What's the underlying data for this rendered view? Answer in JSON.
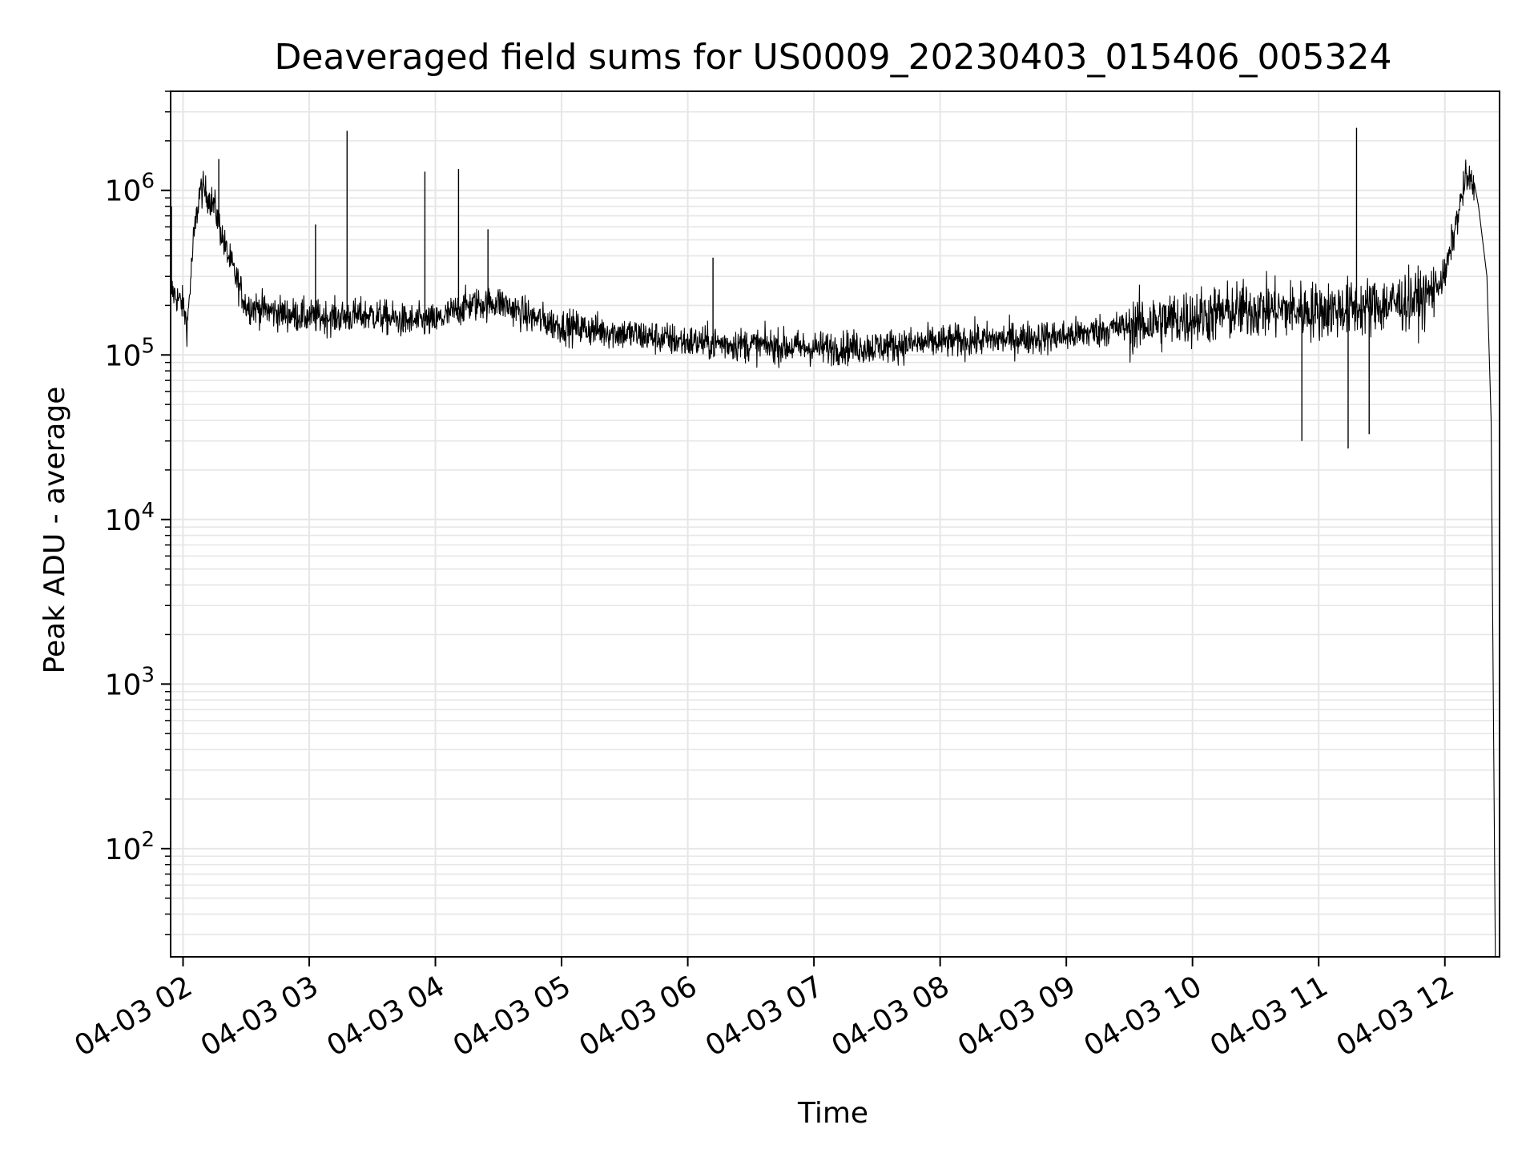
{
  "chart_data": {
    "type": "line",
    "title": "Deaveraged field sums for US0009_20230403_015406_005324",
    "xlabel": "Time",
    "ylabel": "Peak ADU - average",
    "yscale": "log",
    "ylim": [
      22,
      4000000
    ],
    "xlim": [
      "2023-04-03T01:54:06",
      "2023-04-03T12:26:00"
    ],
    "grid": true,
    "grid_color": "#e6e6e6",
    "line_color": "#000000",
    "x_ticks": [
      {
        "time": "2023-04-03T02:00:00",
        "label": "04-03 02"
      },
      {
        "time": "2023-04-03T03:00:00",
        "label": "04-03 03"
      },
      {
        "time": "2023-04-03T04:00:00",
        "label": "04-03 04"
      },
      {
        "time": "2023-04-03T05:00:00",
        "label": "04-03 05"
      },
      {
        "time": "2023-04-03T06:00:00",
        "label": "04-03 06"
      },
      {
        "time": "2023-04-03T07:00:00",
        "label": "04-03 07"
      },
      {
        "time": "2023-04-03T08:00:00",
        "label": "04-03 08"
      },
      {
        "time": "2023-04-03T09:00:00",
        "label": "04-03 09"
      },
      {
        "time": "2023-04-03T10:00:00",
        "label": "04-03 10"
      },
      {
        "time": "2023-04-03T11:00:00",
        "label": "04-03 11"
      },
      {
        "time": "2023-04-03T12:00:00",
        "label": "04-03 12"
      }
    ],
    "y_ticks": [
      {
        "value": 100,
        "base": "10",
        "exp": "2"
      },
      {
        "value": 1000,
        "base": "10",
        "exp": "3"
      },
      {
        "value": 10000,
        "base": "10",
        "exp": "4"
      },
      {
        "value": 100000,
        "base": "10",
        "exp": "5"
      },
      {
        "value": 1000000,
        "base": "10",
        "exp": "6"
      }
    ],
    "series": [
      {
        "style": "noisy-trace",
        "x": [
          "2023-04-03T01:54:06",
          "2023-04-03T02:00:00",
          "2023-04-03T02:02:00",
          "2023-04-03T02:05:00",
          "2023-04-03T02:08:00",
          "2023-04-03T02:10:00",
          "2023-04-03T02:15:00",
          "2023-04-03T02:20:00",
          "2023-04-03T02:30:00",
          "2023-04-03T02:45:00",
          "2023-04-03T03:00:00",
          "2023-04-03T03:15:00",
          "2023-04-03T03:30:00",
          "2023-04-03T03:45:00",
          "2023-04-03T04:00:00",
          "2023-04-03T04:15:00",
          "2023-04-03T04:30:00",
          "2023-04-03T04:45:00",
          "2023-04-03T05:00:00",
          "2023-04-03T05:30:00",
          "2023-04-03T06:00:00",
          "2023-04-03T06:30:00",
          "2023-04-03T07:00:00",
          "2023-04-03T07:30:00",
          "2023-04-03T08:00:00",
          "2023-04-03T08:30:00",
          "2023-04-03T09:00:00",
          "2023-04-03T09:30:00",
          "2023-04-03T10:00:00",
          "2023-04-03T10:30:00",
          "2023-04-03T11:00:00",
          "2023-04-03T11:30:00",
          "2023-04-03T11:50:00",
          "2023-04-03T12:00:00",
          "2023-04-03T12:05:00",
          "2023-04-03T12:08:00",
          "2023-04-03T12:10:00",
          "2023-04-03T12:13:00",
          "2023-04-03T12:16:00",
          "2023-04-03T12:20:00",
          "2023-04-03T12:22:00",
          "2023-04-03T12:24:00"
        ],
        "y": [
          250000,
          200000,
          150000,
          500000,
          1000000,
          1000000,
          800000,
          450000,
          200000,
          180000,
          170000,
          170000,
          175000,
          160000,
          160000,
          200000,
          210000,
          170000,
          150000,
          135000,
          120000,
          115000,
          110000,
          112000,
          120000,
          125000,
          130000,
          150000,
          170000,
          190000,
          185000,
          200000,
          220000,
          300000,
          600000,
          900000,
          1200000,
          1100000,
          800000,
          300000,
          40000,
          22
        ]
      }
    ],
    "spikes": [
      {
        "time": "2023-04-03T01:54:30",
        "value": 800000
      },
      {
        "time": "2023-04-03T02:17:00",
        "value": 1550000
      },
      {
        "time": "2023-04-03T03:18:00",
        "value": 2300000
      },
      {
        "time": "2023-04-03T03:03:00",
        "value": 620000
      },
      {
        "time": "2023-04-03T03:55:00",
        "value": 1300000
      },
      {
        "time": "2023-04-03T04:11:00",
        "value": 1350000
      },
      {
        "time": "2023-04-03T04:25:00",
        "value": 580000
      },
      {
        "time": "2023-04-03T06:12:00",
        "value": 390000
      },
      {
        "time": "2023-04-03T11:18:00",
        "value": 2400000
      },
      {
        "time": "2023-04-03T10:52:00",
        "value": 30000
      },
      {
        "time": "2023-04-03T11:14:00",
        "value": 27000
      },
      {
        "time": "2023-04-03T11:24:00",
        "value": 33000
      }
    ]
  }
}
